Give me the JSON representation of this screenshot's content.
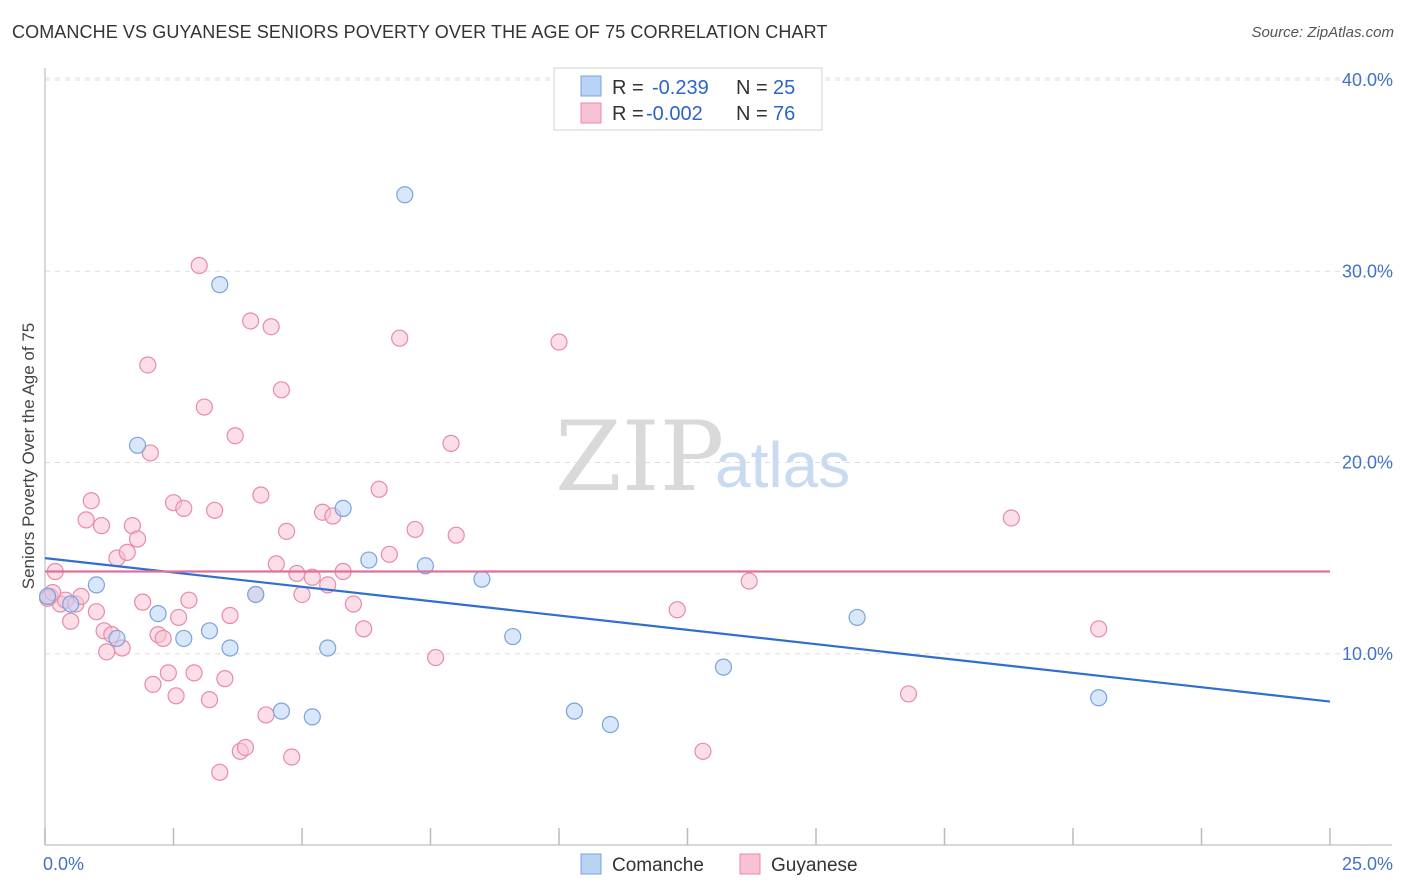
{
  "title": "COMANCHE VS GUYANESE SENIORS POVERTY OVER THE AGE OF 75 CORRELATION CHART",
  "source": "Source: ZipAtlas.com",
  "watermark": {
    "zip": "ZIP",
    "atlas": "atlas"
  },
  "colors": {
    "comanche_fill": "#b9d3f5",
    "comanche_stroke": "#7aa3dd",
    "comanche_line": "#2f6fcf",
    "guyanese_fill": "#f7c3d4",
    "guyanese_stroke": "#e98aaa",
    "guyanese_line": "#e0709a",
    "tick_label": "#4472c4",
    "grid": "#dddddd"
  },
  "legend": {
    "rows": [
      {
        "r_label": "R =",
        "r_value": "-0.239",
        "n_label": "N =",
        "n_value": "25"
      },
      {
        "r_label": "R =",
        "r_value": "-0.002",
        "n_label": "N =",
        "n_value": "76"
      }
    ]
  },
  "bottom_legend": [
    "Comanche",
    "Guyanese"
  ],
  "chart_data": {
    "type": "scatter",
    "title": "COMANCHE VS GUYANESE SENIORS POVERTY OVER THE AGE OF 75 CORRELATION CHART",
    "xlabel": "",
    "ylabel": "Seniors Poverty Over the Age of 75",
    "xlim": [
      0,
      25
    ],
    "ylim": [
      0,
      40
    ],
    "x_tick_labels": [
      "0.0%",
      "25.0%"
    ],
    "y_ticks": [
      10,
      20,
      30,
      40
    ],
    "y_tick_labels": [
      "10.0%",
      "20.0%",
      "30.0%",
      "40.0%"
    ],
    "grid": true,
    "legend_position": "top-center",
    "series": [
      {
        "name": "Comanche",
        "r": -0.239,
        "n": 25,
        "trend": {
          "x": [
            0,
            25
          ],
          "y": [
            15.0,
            7.5
          ]
        },
        "points": [
          [
            0.05,
            13.0
          ],
          [
            1.0,
            13.6
          ],
          [
            1.4,
            10.8
          ],
          [
            1.8,
            20.9
          ],
          [
            2.2,
            12.1
          ],
          [
            2.7,
            10.8
          ],
          [
            3.2,
            11.2
          ],
          [
            3.4,
            29.3
          ],
          [
            3.6,
            10.3
          ],
          [
            4.1,
            13.1
          ],
          [
            4.6,
            7.0
          ],
          [
            5.2,
            6.7
          ],
          [
            5.5,
            10.3
          ],
          [
            5.8,
            17.6
          ],
          [
            6.3,
            14.9
          ],
          [
            7.0,
            34.0
          ],
          [
            7.4,
            14.6
          ],
          [
            8.5,
            13.9
          ],
          [
            9.1,
            10.9
          ],
          [
            10.3,
            7.0
          ],
          [
            11.0,
            6.3
          ],
          [
            13.2,
            9.3
          ],
          [
            15.8,
            11.9
          ],
          [
            20.5,
            7.7
          ],
          [
            0.5,
            12.6
          ]
        ]
      },
      {
        "name": "Guyanese",
        "r": -0.002,
        "n": 76,
        "trend": {
          "x": [
            0,
            25
          ],
          "y": [
            14.3,
            14.3
          ]
        },
        "points": [
          [
            0.1,
            13.0
          ],
          [
            0.2,
            14.3
          ],
          [
            0.3,
            12.6
          ],
          [
            0.4,
            12.8
          ],
          [
            0.5,
            11.7
          ],
          [
            0.6,
            12.6
          ],
          [
            0.7,
            13.0
          ],
          [
            0.8,
            17.0
          ],
          [
            0.9,
            18.0
          ],
          [
            1.0,
            12.2
          ],
          [
            1.1,
            16.7
          ],
          [
            1.15,
            11.2
          ],
          [
            1.2,
            10.1
          ],
          [
            1.3,
            11.0
          ],
          [
            1.4,
            15.0
          ],
          [
            1.5,
            10.3
          ],
          [
            1.6,
            15.3
          ],
          [
            1.7,
            16.7
          ],
          [
            1.8,
            16.0
          ],
          [
            1.9,
            12.7
          ],
          [
            2.0,
            25.1
          ],
          [
            2.05,
            20.5
          ],
          [
            2.1,
            8.4
          ],
          [
            2.2,
            11.0
          ],
          [
            2.3,
            10.8
          ],
          [
            2.4,
            9.0
          ],
          [
            2.5,
            17.9
          ],
          [
            2.55,
            7.8
          ],
          [
            2.6,
            11.9
          ],
          [
            2.7,
            17.6
          ],
          [
            2.8,
            12.8
          ],
          [
            2.9,
            9.0
          ],
          [
            3.0,
            30.3
          ],
          [
            3.1,
            22.9
          ],
          [
            3.2,
            7.6
          ],
          [
            3.3,
            17.5
          ],
          [
            3.4,
            3.8
          ],
          [
            3.5,
            8.7
          ],
          [
            3.6,
            12.0
          ],
          [
            3.7,
            21.4
          ],
          [
            3.8,
            4.9
          ],
          [
            3.9,
            5.1
          ],
          [
            4.0,
            27.4
          ],
          [
            4.1,
            13.1
          ],
          [
            4.2,
            18.3
          ],
          [
            4.3,
            6.8
          ],
          [
            4.4,
            27.1
          ],
          [
            4.5,
            14.7
          ],
          [
            4.6,
            23.8
          ],
          [
            4.7,
            16.4
          ],
          [
            4.8,
            4.6
          ],
          [
            4.9,
            14.2
          ],
          [
            5.0,
            13.1
          ],
          [
            5.2,
            14.0
          ],
          [
            5.4,
            17.4
          ],
          [
            5.5,
            13.6
          ],
          [
            5.6,
            17.2
          ],
          [
            5.8,
            14.3
          ],
          [
            6.0,
            12.6
          ],
          [
            6.2,
            11.3
          ],
          [
            6.5,
            18.6
          ],
          [
            6.7,
            15.2
          ],
          [
            6.9,
            26.5
          ],
          [
            7.2,
            16.5
          ],
          [
            7.6,
            9.8
          ],
          [
            7.9,
            21.0
          ],
          [
            8.0,
            16.2
          ],
          [
            10.0,
            26.3
          ],
          [
            12.3,
            12.3
          ],
          [
            12.8,
            4.9
          ],
          [
            13.7,
            13.8
          ],
          [
            16.8,
            7.9
          ],
          [
            18.8,
            17.1
          ],
          [
            20.5,
            11.3
          ],
          [
            0.05,
            12.9
          ],
          [
            0.15,
            13.2
          ]
        ]
      }
    ]
  }
}
